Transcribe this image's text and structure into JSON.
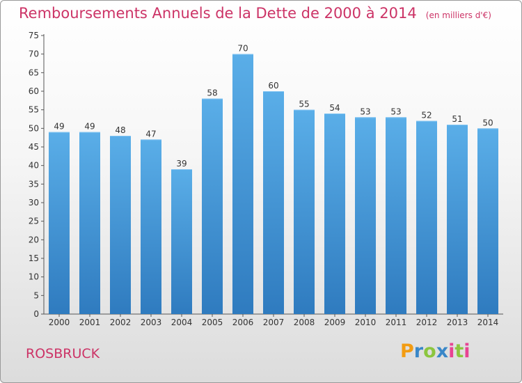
{
  "header": {
    "title": "Remboursements Annuels de la Dette de 2000 à 2014",
    "subtitle": "(en milliers d'€)"
  },
  "footer": {
    "place": "ROSBRUCK",
    "logo_text": "Proxiti",
    "logo_colors": [
      "#f39c12",
      "#3a87c8",
      "#8cc63f",
      "#3a87c8",
      "#e84393",
      "#8cc63f",
      "#e84393"
    ]
  },
  "chart_data": {
    "type": "bar",
    "title": "Remboursements Annuels de la Dette de 2000 à 2014",
    "subtitle": "(en milliers d'€)",
    "categories": [
      "2000",
      "2001",
      "2002",
      "2003",
      "2004",
      "2005",
      "2006",
      "2007",
      "2008",
      "2009",
      "2010",
      "2011",
      "2012",
      "2013",
      "2014"
    ],
    "values": [
      49,
      49,
      48,
      47,
      39,
      58,
      70,
      60,
      55,
      54,
      53,
      53,
      52,
      51,
      50
    ],
    "xlabel": "",
    "ylabel": "",
    "ylim": [
      0,
      75
    ],
    "yticks": [
      0,
      5,
      10,
      15,
      20,
      25,
      30,
      35,
      40,
      45,
      50,
      55,
      60,
      65,
      70,
      75
    ],
    "grid": false,
    "data_labels": true,
    "bar_color_top": "#5aaee8",
    "bar_color_bottom": "#2f7bbf"
  }
}
